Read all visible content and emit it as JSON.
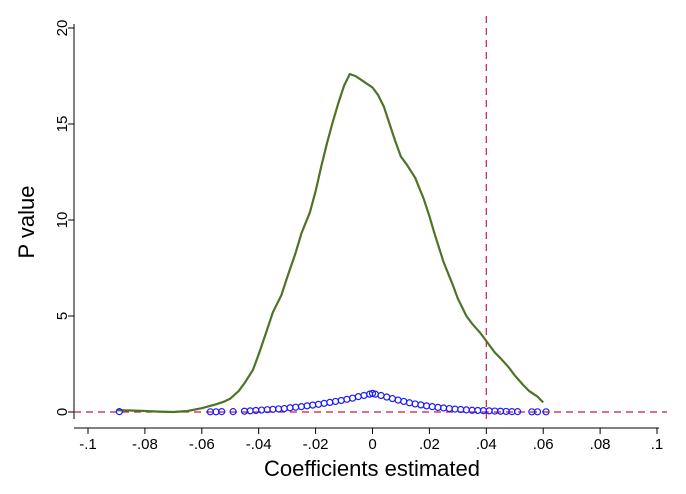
{
  "chart_data": {
    "type": "line",
    "title": "",
    "xlabel": "Coefficients estimated",
    "ylabel": "P value",
    "xlim": [
      -0.1,
      0.1
    ],
    "ylim": [
      0,
      20
    ],
    "x_ticks": [
      -0.1,
      -0.08,
      -0.06,
      -0.04,
      -0.02,
      0,
      0.02,
      0.04,
      0.06,
      0.08,
      0.1
    ],
    "x_tick_labels": [
      "-.1",
      "-.08",
      "-.06",
      "-.04",
      "-.02",
      "0",
      ".02",
      ".04",
      ".06",
      ".08",
      ".1"
    ],
    "y_ticks": [
      0,
      5,
      10,
      15,
      20
    ],
    "y_tick_labels": [
      "0",
      "5",
      "10",
      "15",
      "20"
    ],
    "grid": false,
    "reference_lines": [
      {
        "orientation": "vertical",
        "x": 0.04,
        "color": "#c8194e",
        "style": "dashed"
      },
      {
        "orientation": "horizontal",
        "y": 0,
        "color": "#c8194e",
        "style": "dashed"
      }
    ],
    "series": [
      {
        "kind": "density-line",
        "color": "#4f7326",
        "points": [
          [
            -0.09,
            0.1
          ],
          [
            -0.085,
            0.08
          ],
          [
            -0.08,
            0.05
          ],
          [
            -0.075,
            0.02
          ],
          [
            -0.07,
            0.0
          ],
          [
            -0.065,
            0.05
          ],
          [
            -0.06,
            0.2
          ],
          [
            -0.055,
            0.4
          ],
          [
            -0.052,
            0.55
          ],
          [
            -0.05,
            0.7
          ],
          [
            -0.047,
            1.1
          ],
          [
            -0.045,
            1.5
          ],
          [
            -0.042,
            2.2
          ],
          [
            -0.04,
            3.0
          ],
          [
            -0.037,
            4.3
          ],
          [
            -0.035,
            5.2
          ],
          [
            -0.032,
            6.1
          ],
          [
            -0.03,
            7.0
          ],
          [
            -0.027,
            8.3
          ],
          [
            -0.025,
            9.3
          ],
          [
            -0.022,
            10.4
          ],
          [
            -0.02,
            11.5
          ],
          [
            -0.018,
            12.8
          ],
          [
            -0.016,
            14.0
          ],
          [
            -0.014,
            15.1
          ],
          [
            -0.012,
            16.1
          ],
          [
            -0.01,
            17.0
          ],
          [
            -0.008,
            17.6
          ],
          [
            -0.006,
            17.5
          ],
          [
            -0.004,
            17.3
          ],
          [
            -0.002,
            17.1
          ],
          [
            0.0,
            16.9
          ],
          [
            0.002,
            16.5
          ],
          [
            0.004,
            15.9
          ],
          [
            0.006,
            15.0
          ],
          [
            0.008,
            14.1
          ],
          [
            0.01,
            13.3
          ],
          [
            0.012,
            12.9
          ],
          [
            0.015,
            12.2
          ],
          [
            0.018,
            11.1
          ],
          [
            0.02,
            10.2
          ],
          [
            0.022,
            9.2
          ],
          [
            0.025,
            7.8
          ],
          [
            0.028,
            6.7
          ],
          [
            0.03,
            5.9
          ],
          [
            0.033,
            5.0
          ],
          [
            0.035,
            4.6
          ],
          [
            0.038,
            4.1
          ],
          [
            0.04,
            3.7
          ],
          [
            0.043,
            3.1
          ],
          [
            0.045,
            2.8
          ],
          [
            0.048,
            2.3
          ],
          [
            0.05,
            1.9
          ],
          [
            0.053,
            1.4
          ],
          [
            0.055,
            1.1
          ],
          [
            0.058,
            0.8
          ],
          [
            0.06,
            0.5
          ]
        ]
      },
      {
        "kind": "scatter",
        "marker": "hollow-circle",
        "color": "#1a1aff",
        "points": [
          [
            -0.089,
            0.02
          ],
          [
            -0.057,
            0.01
          ],
          [
            -0.055,
            0.01
          ],
          [
            -0.053,
            0.02
          ],
          [
            -0.049,
            0.02
          ],
          [
            -0.045,
            0.04
          ],
          [
            -0.043,
            0.06
          ],
          [
            -0.041,
            0.08
          ],
          [
            -0.039,
            0.1
          ],
          [
            -0.037,
            0.12
          ],
          [
            -0.035,
            0.14
          ],
          [
            -0.033,
            0.16
          ],
          [
            -0.031,
            0.18
          ],
          [
            -0.029,
            0.22
          ],
          [
            -0.027,
            0.25
          ],
          [
            -0.025,
            0.28
          ],
          [
            -0.023,
            0.32
          ],
          [
            -0.021,
            0.36
          ],
          [
            -0.019,
            0.4
          ],
          [
            -0.017,
            0.45
          ],
          [
            -0.015,
            0.5
          ],
          [
            -0.013,
            0.55
          ],
          [
            -0.011,
            0.6
          ],
          [
            -0.009,
            0.66
          ],
          [
            -0.007,
            0.72
          ],
          [
            -0.005,
            0.8
          ],
          [
            -0.003,
            0.86
          ],
          [
            -0.001,
            0.93
          ],
          [
            0.0,
            0.97
          ],
          [
            0.001,
            0.93
          ],
          [
            0.003,
            0.86
          ],
          [
            0.005,
            0.78
          ],
          [
            0.007,
            0.7
          ],
          [
            0.009,
            0.62
          ],
          [
            0.011,
            0.55
          ],
          [
            0.013,
            0.48
          ],
          [
            0.015,
            0.42
          ],
          [
            0.017,
            0.37
          ],
          [
            0.019,
            0.32
          ],
          [
            0.021,
            0.28
          ],
          [
            0.023,
            0.24
          ],
          [
            0.025,
            0.21
          ],
          [
            0.027,
            0.18
          ],
          [
            0.029,
            0.15
          ],
          [
            0.031,
            0.13
          ],
          [
            0.033,
            0.11
          ],
          [
            0.035,
            0.09
          ],
          [
            0.037,
            0.08
          ],
          [
            0.039,
            0.07
          ],
          [
            0.041,
            0.06
          ],
          [
            0.043,
            0.05
          ],
          [
            0.045,
            0.04
          ],
          [
            0.047,
            0.03
          ],
          [
            0.049,
            0.02
          ],
          [
            0.051,
            0.02
          ],
          [
            0.056,
            0.01
          ],
          [
            0.058,
            0.01
          ],
          [
            0.061,
            0.01
          ]
        ]
      }
    ]
  }
}
